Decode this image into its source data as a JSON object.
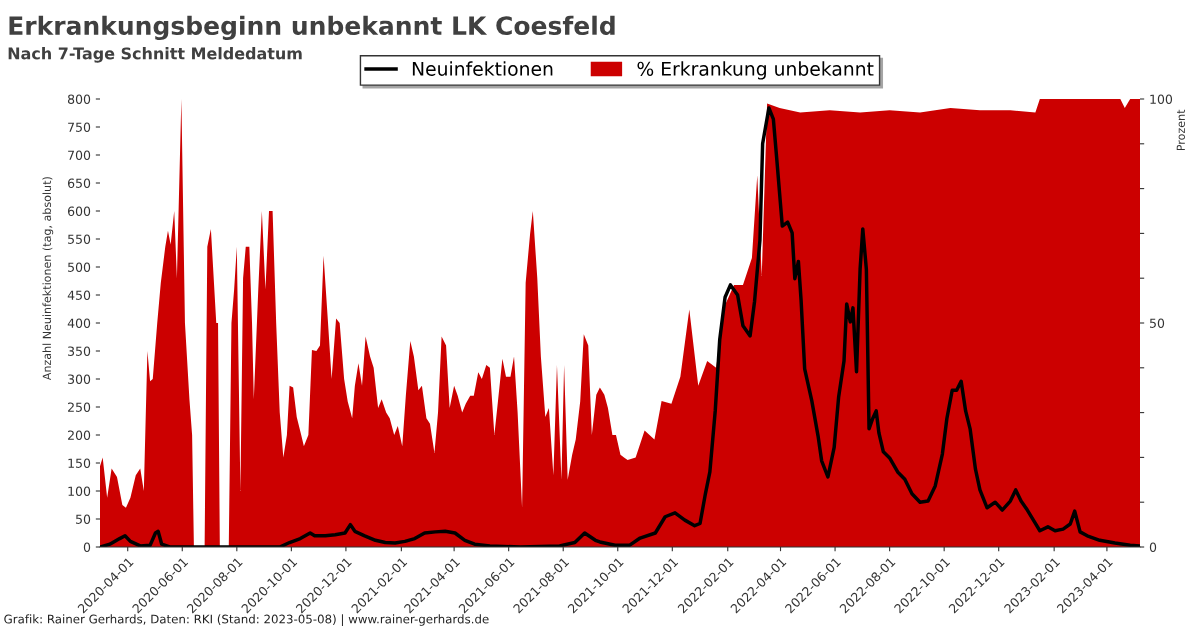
{
  "chart_data": {
    "type": "line",
    "title": "Erkrankungsbeginn unbekannt LK Coesfeld",
    "subtitle": "Nach 7-Tage Schnitt Meldedatum",
    "ylabel": "Anzahl Neuinfektionen (tag, absolut)",
    "y2label": "Prozent",
    "annotations": [
      "Grafik: Rainer Gerhards, Daten: RKI (Stand: 2023-05-08) | www.rainer-gerhards.de"
    ],
    "xlim": [
      "2020-03-01",
      "2023-05-08"
    ],
    "ylim": [
      0,
      800
    ],
    "yticks": [
      0,
      50,
      100,
      150,
      200,
      250,
      300,
      350,
      400,
      450,
      500,
      550,
      600,
      650,
      700,
      750,
      800
    ],
    "y2lim": [
      0,
      100
    ],
    "y2ticks": [
      0,
      {
        "value": 10,
        "label": null
      },
      {
        "value": 20,
        "label": null
      },
      {
        "value": 30,
        "label": null
      },
      {
        "value": 40,
        "label": null
      },
      50,
      {
        "value": 60,
        "label": null
      },
      {
        "value": 70,
        "label": null
      },
      {
        "value": 80,
        "label": null
      },
      {
        "value": 90,
        "label": null
      },
      100
    ],
    "xticks": [
      "2020-04-01",
      "2020-06-01",
      "2020-08-01",
      "2020-10-01",
      "2020-12-01",
      "2021-02-01",
      "2021-04-01",
      "2021-06-01",
      "2021-08-01",
      "2021-10-01",
      "2021-12-01",
      "2022-02-01",
      "2022-04-01",
      "2022-06-01",
      "2022-08-01",
      "2022-10-01",
      "2022-12-01",
      "2023-02-01",
      "2023-04-01"
    ],
    "grid": false,
    "legend": "top",
    "series": [
      {
        "name": "% Erkrankung unbekannt",
        "type": "area",
        "axis": "y2",
        "color": "#cc0000",
        "x": [
          "2020-03-01",
          "2020-03-04",
          "2020-03-09",
          "2020-03-14",
          "2020-03-20",
          "2020-03-26",
          "2020-03-30",
          "2020-04-04",
          "2020-04-10",
          "2020-04-15",
          "2020-04-19",
          "2020-04-23",
          "2020-04-26",
          "2020-04-29",
          "2020-05-04",
          "2020-05-08",
          "2020-05-13",
          "2020-05-16",
          "2020-05-19",
          "2020-05-23",
          "2020-05-26",
          "2020-05-31",
          "2020-06-04",
          "2020-06-09",
          "2020-06-12",
          "2020-06-14",
          "2020-06-26",
          "2020-06-29",
          "2020-07-03",
          "2020-07-09",
          "2020-07-11",
          "2020-07-13",
          "2020-07-23",
          "2020-07-26",
          "2020-07-29",
          "2020-08-01",
          "2020-08-05",
          "2020-08-08",
          "2020-08-11",
          "2020-08-15",
          "2020-08-18",
          "2020-08-20",
          "2020-08-25",
          "2020-08-29",
          "2020-09-02",
          "2020-09-06",
          "2020-09-10",
          "2020-09-14",
          "2020-09-18",
          "2020-09-22",
          "2020-09-26",
          "2020-09-29",
          "2020-10-03",
          "2020-10-07",
          "2020-10-12",
          "2020-10-15",
          "2020-10-20",
          "2020-10-24",
          "2020-10-29",
          "2020-11-02",
          "2020-11-06",
          "2020-11-11",
          "2020-11-15",
          "2020-11-20",
          "2020-11-24",
          "2020-11-29",
          "2020-12-03",
          "2020-12-08",
          "2020-12-11",
          "2020-12-15",
          "2020-12-19",
          "2020-12-23",
          "2020-12-28",
          "2021-01-01",
          "2021-01-06",
          "2021-01-10",
          "2021-01-15",
          "2021-01-19",
          "2021-01-24",
          "2021-01-28",
          "2021-02-02",
          "2021-02-06",
          "2021-02-11",
          "2021-02-15",
          "2021-02-20",
          "2021-02-24",
          "2021-03-01",
          "2021-03-05",
          "2021-03-10",
          "2021-03-14",
          "2021-03-18",
          "2021-03-23",
          "2021-03-27",
          "2021-04-01",
          "2021-04-05",
          "2021-04-10",
          "2021-04-14",
          "2021-04-19",
          "2021-04-23",
          "2021-04-28",
          "2021-05-02",
          "2021-05-07",
          "2021-05-11",
          "2021-05-16",
          "2021-05-20",
          "2021-05-25",
          "2021-05-29",
          "2021-06-03",
          "2021-06-07",
          "2021-06-11",
          "2021-06-16",
          "2021-06-20",
          "2021-06-25",
          "2021-06-28",
          "2021-07-03",
          "2021-07-07",
          "2021-07-12",
          "2021-07-16",
          "2021-07-21",
          "2021-07-25",
          "2021-07-30",
          "2021-08-02",
          "2021-08-06",
          "2021-08-11",
          "2021-08-15",
          "2021-08-20",
          "2021-08-24",
          "2021-08-29",
          "2021-09-02",
          "2021-09-07",
          "2021-09-11",
          "2021-09-16",
          "2021-09-20",
          "2021-09-25",
          "2021-09-29",
          "2021-10-04",
          "2021-10-08",
          "2021-10-12",
          "2021-10-21",
          "2021-10-31",
          "2021-11-11",
          "2021-11-19",
          "2021-11-30",
          "2021-12-10",
          "2021-12-20",
          "2021-12-30",
          "2022-01-09",
          "2022-01-19",
          "2022-01-29",
          "2022-02-08",
          "2022-02-18",
          "2022-02-28",
          "2022-03-06",
          "2022-03-11",
          "2022-03-17",
          "2022-03-31",
          "2022-04-23",
          "2022-05-26",
          "2022-06-29",
          "2022-08-01",
          "2022-09-04",
          "2022-10-08",
          "2022-11-10",
          "2022-12-14",
          "2023-01-11",
          "2023-01-16",
          "2023-04-16",
          "2023-04-21",
          "2023-04-27",
          "2023-05-08"
        ],
        "values": [
          18,
          20,
          11,
          17.5,
          15.6,
          9.4,
          8.75,
          11,
          16,
          17.5,
          12.5,
          43.75,
          37,
          37.5,
          50,
          59,
          67,
          70.6,
          67.5,
          75,
          60,
          100,
          50,
          33,
          25,
          0,
          0,
          67,
          71,
          50,
          50,
          0,
          0,
          50,
          57.5,
          67,
          12.5,
          60,
          67,
          67,
          50,
          33,
          57.5,
          75,
          57.5,
          75,
          75,
          50,
          30,
          20,
          25,
          36,
          35.6,
          29,
          25,
          22.5,
          25,
          44,
          43.75,
          45,
          65,
          50,
          37.5,
          51,
          50,
          37.5,
          32.5,
          28.75,
          36,
          41,
          36,
          47,
          42.5,
          40,
          31,
          33,
          30,
          28.75,
          25,
          27,
          22.5,
          33.75,
          46,
          42.5,
          35,
          36,
          28.75,
          27.5,
          21,
          30,
          47,
          45,
          31,
          36,
          33.75,
          30,
          32,
          33.75,
          33.75,
          39,
          37.5,
          40.6,
          40,
          25,
          32.5,
          42,
          38,
          38,
          42.5,
          30,
          8.75,
          59,
          70,
          75,
          60,
          42.5,
          29,
          31,
          16,
          40.6,
          15,
          40.6,
          15,
          20.6,
          24,
          32.5,
          47.5,
          45,
          25,
          34,
          35.6,
          34,
          31,
          25,
          25,
          20.6,
          20,
          19.4,
          20,
          26,
          24,
          32.6,
          32,
          38,
          53,
          36,
          41.5,
          40,
          54,
          58.5,
          58.5,
          64.5,
          83,
          60.5,
          99,
          98,
          97,
          97.5,
          97,
          97.5,
          97,
          98,
          97.5,
          97.5,
          97,
          100,
          100,
          98,
          100,
          100
        ]
      },
      {
        "name": "Neuinfektionen",
        "color": "#000000",
        "x": [
          "2020-03-01",
          "2020-03-12",
          "2020-03-23",
          "2020-03-29",
          "2020-04-04",
          "2020-04-15",
          "2020-04-26",
          "2020-05-02",
          "2020-05-05",
          "2020-05-09",
          "2020-05-18",
          "2020-09-18",
          "2020-09-29",
          "2020-10-11",
          "2020-10-22",
          "2020-10-27",
          "2020-11-08",
          "2020-11-19",
          "2020-11-30",
          "2020-12-06",
          "2020-12-11",
          "2020-12-22",
          "2021-01-03",
          "2021-01-14",
          "2021-01-25",
          "2021-02-05",
          "2021-02-16",
          "2021-02-27",
          "2021-03-11",
          "2021-03-22",
          "2021-04-02",
          "2021-04-13",
          "2021-04-24",
          "2021-05-11",
          "2021-06-14",
          "2021-07-28",
          "2021-08-14",
          "2021-08-25",
          "2021-09-06",
          "2021-09-11",
          "2021-09-28",
          "2021-10-14",
          "2021-10-26",
          "2021-11-12",
          "2021-11-23",
          "2021-12-04",
          "2021-12-15",
          "2021-12-26",
          "2022-01-01",
          "2022-01-07",
          "2022-01-12",
          "2022-01-18",
          "2022-01-23",
          "2022-01-29",
          "2022-02-04",
          "2022-02-12",
          "2022-02-18",
          "2022-02-26",
          "2022-03-03",
          "2022-03-09",
          "2022-03-12",
          "2022-03-19",
          "2022-03-24",
          "2022-03-28",
          "2022-04-03",
          "2022-04-09",
          "2022-04-14",
          "2022-04-17",
          "2022-04-21",
          "2022-04-24",
          "2022-04-28",
          "2022-05-06",
          "2022-05-13",
          "2022-05-17",
          "2022-05-24",
          "2022-05-31",
          "2022-06-05",
          "2022-06-11",
          "2022-06-14",
          "2022-06-18",
          "2022-06-21",
          "2022-06-25",
          "2022-06-29",
          "2022-07-02",
          "2022-07-06",
          "2022-07-09",
          "2022-07-13",
          "2022-07-17",
          "2022-07-20",
          "2022-07-25",
          "2022-08-01",
          "2022-08-10",
          "2022-08-18",
          "2022-08-26",
          "2022-09-04",
          "2022-09-13",
          "2022-09-21",
          "2022-09-29",
          "2022-10-04",
          "2022-10-10",
          "2022-10-15",
          "2022-10-20",
          "2022-10-25",
          "2022-10-30",
          "2022-11-05",
          "2022-11-10",
          "2022-11-18",
          "2022-11-27",
          "2022-12-05",
          "2022-12-14",
          "2022-12-20",
          "2022-12-26",
          "2023-01-02",
          "2023-01-10",
          "2023-01-16",
          "2023-01-25",
          "2023-02-02",
          "2023-02-11",
          "2023-02-19",
          "2023-02-24",
          "2023-03-02",
          "2023-03-10",
          "2023-03-24",
          "2023-04-10",
          "2023-04-27",
          "2023-05-08"
        ],
        "values": [
          0,
          5,
          15,
          20,
          10,
          2,
          3,
          25,
          28,
          5,
          0,
          0,
          8,
          15,
          25,
          20,
          20,
          22,
          25,
          40,
          28,
          20,
          12,
          8,
          7,
          10,
          15,
          25,
          27,
          28,
          25,
          12,
          5,
          2,
          0,
          2,
          8,
          25,
          12,
          9,
          3,
          3,
          16,
          25,
          54,
          61,
          48,
          38,
          42,
          95,
          134,
          243,
          370,
          446,
          468,
          450,
          395,
          377,
          439,
          548,
          720,
          784,
          764,
          689,
          573,
          580,
          561,
          479,
          510,
          441,
          318,
          261,
          198,
          154,
          125,
          178,
          268,
          332,
          434,
          402,
          427,
          313,
          496,
          568,
          496,
          211,
          229,
          243,
          204,
          170,
          159,
          134,
          121,
          95,
          80,
          82,
          109,
          166,
          229,
          280,
          280,
          296,
          243,
          211,
          139,
          102,
          70,
          80,
          66,
          82,
          102,
          82,
          66,
          45,
          29,
          36,
          29,
          32,
          41,
          64,
          27,
          20,
          12,
          7,
          3,
          2
        ]
      }
    ]
  }
}
